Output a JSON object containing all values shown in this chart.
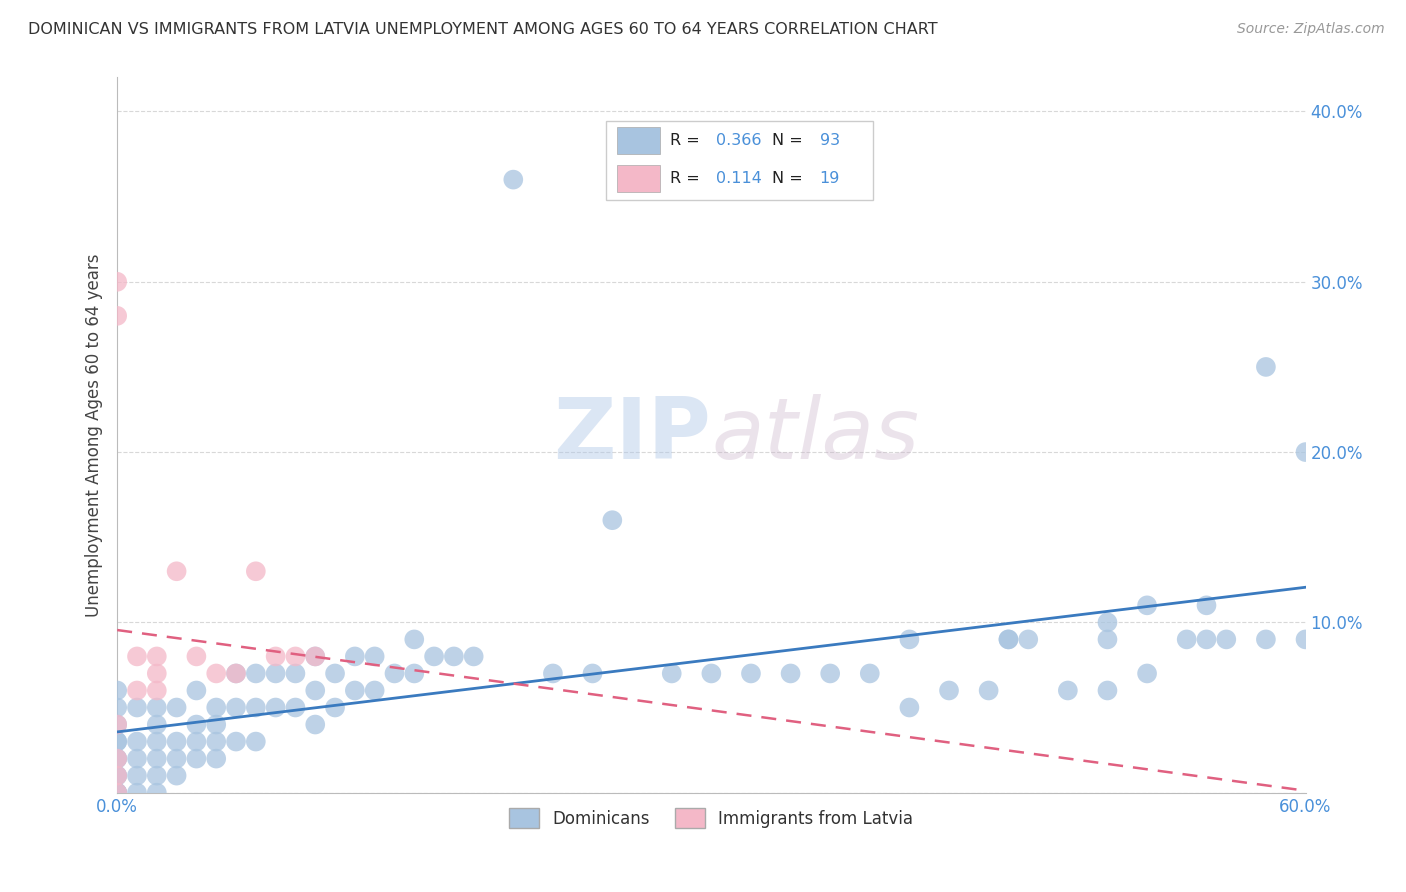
{
  "title": "DOMINICAN VS IMMIGRANTS FROM LATVIA UNEMPLOYMENT AMONG AGES 60 TO 64 YEARS CORRELATION CHART",
  "source": "Source: ZipAtlas.com",
  "ylabel": "Unemployment Among Ages 60 to 64 years",
  "xlim": [
    0.0,
    0.6
  ],
  "ylim": [
    0.0,
    0.42
  ],
  "xticks": [
    0.0,
    0.1,
    0.2,
    0.3,
    0.4,
    0.5,
    0.6
  ],
  "yticks": [
    0.0,
    0.1,
    0.2,
    0.3,
    0.4
  ],
  "xticklabels": [
    "0.0%",
    "",
    "",
    "",
    "",
    "",
    "60.0%"
  ],
  "yticklabels_right": [
    "",
    "10.0%",
    "20.0%",
    "30.0%",
    "40.0%"
  ],
  "dominican_R": 0.366,
  "dominican_N": 93,
  "latvia_R": 0.114,
  "latvia_N": 19,
  "blue_color": "#a8c4e0",
  "pink_color": "#f4b8c8",
  "blue_line_color": "#3a7abf",
  "pink_line_color": "#e06080",
  "watermark_color": "#c8d8ec",
  "grid_color": "#d8d8d8",
  "title_color": "#333333",
  "source_color": "#999999",
  "tick_color": "#4a90d9",
  "dominican_x": [
    0.0,
    0.0,
    0.0,
    0.0,
    0.0,
    0.0,
    0.0,
    0.0,
    0.0,
    0.0,
    0.0,
    0.0,
    0.01,
    0.01,
    0.01,
    0.01,
    0.01,
    0.02,
    0.02,
    0.02,
    0.02,
    0.02,
    0.02,
    0.03,
    0.03,
    0.03,
    0.03,
    0.04,
    0.04,
    0.04,
    0.04,
    0.05,
    0.05,
    0.05,
    0.05,
    0.06,
    0.06,
    0.06,
    0.07,
    0.07,
    0.07,
    0.08,
    0.08,
    0.09,
    0.09,
    0.1,
    0.1,
    0.1,
    0.11,
    0.11,
    0.12,
    0.12,
    0.13,
    0.13,
    0.14,
    0.15,
    0.15,
    0.16,
    0.17,
    0.18,
    0.2,
    0.22,
    0.24,
    0.25,
    0.28,
    0.3,
    0.32,
    0.34,
    0.36,
    0.38,
    0.4,
    0.4,
    0.42,
    0.44,
    0.45,
    0.45,
    0.46,
    0.48,
    0.5,
    0.5,
    0.5,
    0.52,
    0.52,
    0.54,
    0.55,
    0.55,
    0.56,
    0.58,
    0.58,
    0.6,
    0.6
  ],
  "dominican_y": [
    0.0,
    0.0,
    0.0,
    0.01,
    0.01,
    0.02,
    0.02,
    0.03,
    0.03,
    0.04,
    0.05,
    0.06,
    0.0,
    0.01,
    0.02,
    0.03,
    0.05,
    0.0,
    0.01,
    0.02,
    0.03,
    0.04,
    0.05,
    0.01,
    0.02,
    0.03,
    0.05,
    0.02,
    0.03,
    0.04,
    0.06,
    0.02,
    0.03,
    0.04,
    0.05,
    0.03,
    0.05,
    0.07,
    0.03,
    0.05,
    0.07,
    0.05,
    0.07,
    0.05,
    0.07,
    0.04,
    0.06,
    0.08,
    0.05,
    0.07,
    0.06,
    0.08,
    0.06,
    0.08,
    0.07,
    0.07,
    0.09,
    0.08,
    0.08,
    0.08,
    0.36,
    0.07,
    0.07,
    0.16,
    0.07,
    0.07,
    0.07,
    0.07,
    0.07,
    0.07,
    0.05,
    0.09,
    0.06,
    0.06,
    0.09,
    0.09,
    0.09,
    0.06,
    0.06,
    0.09,
    0.1,
    0.07,
    0.11,
    0.09,
    0.09,
    0.11,
    0.09,
    0.09,
    0.25,
    0.09,
    0.2
  ],
  "latvia_x": [
    0.0,
    0.0,
    0.0,
    0.0,
    0.0,
    0.0,
    0.01,
    0.01,
    0.02,
    0.02,
    0.02,
    0.03,
    0.04,
    0.05,
    0.06,
    0.07,
    0.08,
    0.09,
    0.1
  ],
  "latvia_y": [
    0.0,
    0.01,
    0.02,
    0.04,
    0.28,
    0.3,
    0.06,
    0.08,
    0.06,
    0.07,
    0.08,
    0.13,
    0.08,
    0.07,
    0.07,
    0.13,
    0.08,
    0.08,
    0.08
  ]
}
